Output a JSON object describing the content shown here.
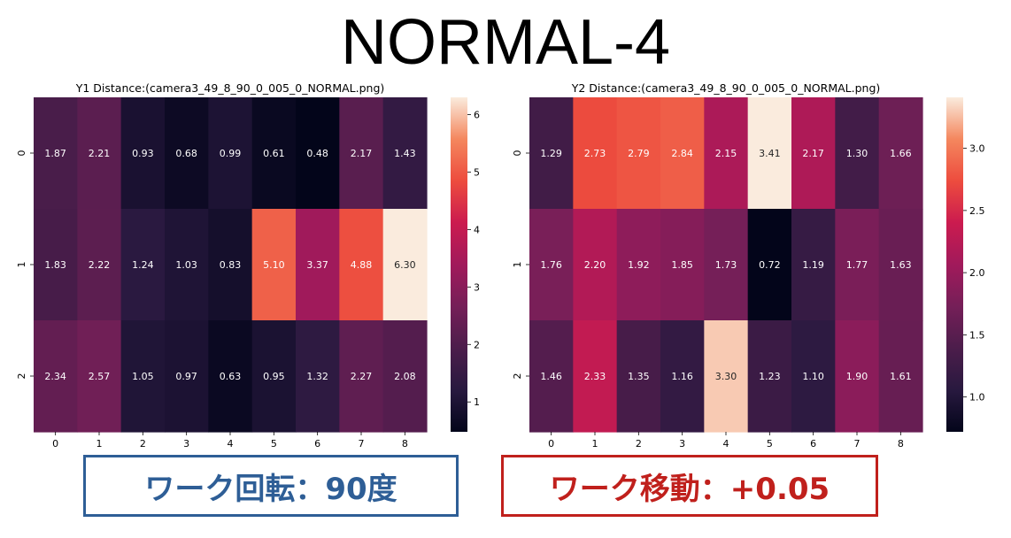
{
  "page_title": "NORMAL-4",
  "captions": {
    "left": "ワーク回転：90度",
    "right": "ワーク移動：+0.05"
  },
  "colors": {
    "left_caption": "#2e5e96",
    "right_caption": "#c0201c",
    "colormap": "rocket"
  },
  "chart_data": [
    {
      "type": "heatmap",
      "title": "Y1 Distance:(camera3_49_8_90_0_005_0_NORMAL.png)",
      "x_ticks": [
        "0",
        "1",
        "2",
        "3",
        "4",
        "5",
        "6",
        "7",
        "8"
      ],
      "y_ticks": [
        "0",
        "1",
        "2"
      ],
      "values": [
        [
          1.87,
          2.21,
          0.93,
          0.68,
          0.99,
          0.61,
          0.48,
          2.17,
          1.43
        ],
        [
          1.83,
          2.22,
          1.24,
          1.03,
          0.83,
          5.1,
          3.37,
          4.88,
          6.3
        ],
        [
          2.34,
          2.57,
          1.05,
          0.97,
          0.63,
          0.95,
          1.32,
          2.27,
          2.08
        ]
      ],
      "colorbar": {
        "range": [
          0.48,
          6.3
        ],
        "ticks": [
          "1",
          "2",
          "3",
          "4",
          "5",
          "6"
        ],
        "tick_values": [
          1,
          2,
          3,
          4,
          5,
          6
        ]
      }
    },
    {
      "type": "heatmap",
      "title": "Y2 Distance:(camera3_49_8_90_0_005_0_NORMAL.png)",
      "x_ticks": [
        "0",
        "1",
        "2",
        "3",
        "4",
        "5",
        "6",
        "7",
        "8"
      ],
      "y_ticks": [
        "0",
        "1",
        "2"
      ],
      "values": [
        [
          1.29,
          2.73,
          2.79,
          2.84,
          2.15,
          3.41,
          2.17,
          1.3,
          1.66
        ],
        [
          1.76,
          2.2,
          1.92,
          1.85,
          1.73,
          0.72,
          1.19,
          1.77,
          1.63
        ],
        [
          1.46,
          2.33,
          1.35,
          1.16,
          3.3,
          1.23,
          1.1,
          1.9,
          1.61
        ]
      ],
      "colorbar": {
        "range": [
          0.72,
          3.41
        ],
        "ticks": [
          "1.0",
          "1.5",
          "2.0",
          "2.5",
          "3.0"
        ],
        "tick_values": [
          1.0,
          1.5,
          2.0,
          2.5,
          3.0
        ]
      }
    }
  ]
}
